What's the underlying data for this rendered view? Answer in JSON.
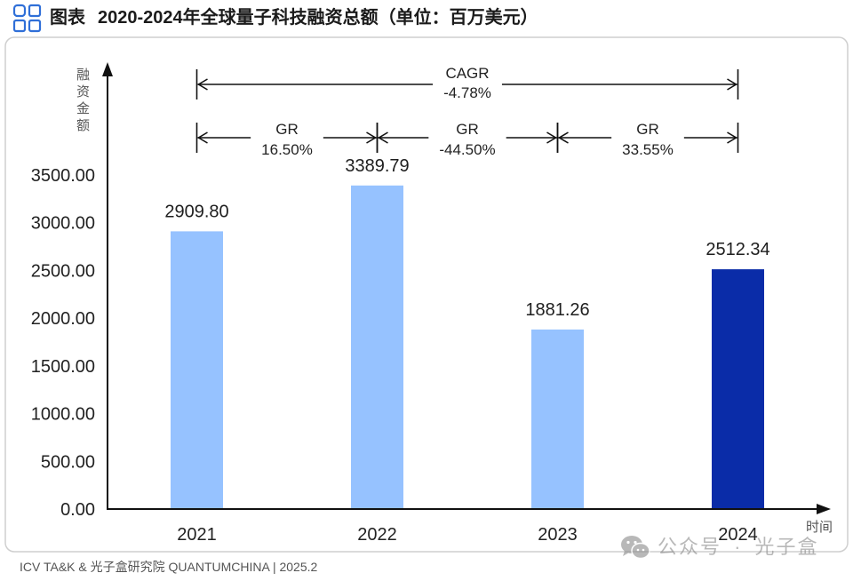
{
  "header": {
    "icon": "grid-icon",
    "icon_color": "#2F6FD8"
  },
  "chart_data": {
    "type": "bar",
    "figure_label": "图表",
    "title": "2020-2024年全球量子科技融资总额（单位：百万美元）",
    "xlabel": "时间",
    "ylabel": "融资金额",
    "categories": [
      "2021",
      "2022",
      "2023",
      "2024"
    ],
    "values": [
      2909.8,
      3389.79,
      1881.26,
      2512.34
    ],
    "value_labels": [
      "2909.80",
      "3389.79",
      "1881.26",
      "2512.34"
    ],
    "bar_colors": [
      "#96C2FF",
      "#96C2FF",
      "#96C2FF",
      "#0A2CA8"
    ],
    "ylim": [
      0,
      3500
    ],
    "yticks": [
      "0.00",
      "500.00",
      "1000.00",
      "1500.00",
      "2000.00",
      "2500.00",
      "3000.00",
      "3500.00"
    ],
    "grid": false,
    "legend": false,
    "annotations": {
      "cagr": {
        "label": "CAGR",
        "value": "-4.78%",
        "span": [
          0,
          3
        ]
      },
      "growth_rates": [
        {
          "label": "GR",
          "value": "16.50%",
          "span": [
            0,
            1
          ]
        },
        {
          "label": "GR",
          "value": "-44.50%",
          "span": [
            1,
            2
          ]
        },
        {
          "label": "GR",
          "value": "33.55%",
          "span": [
            2,
            3
          ]
        }
      ]
    }
  },
  "footer": {
    "source": "ICV TA&K & 光子盒研究院 QUANTUMCHINA | 2025.2"
  },
  "watermark": {
    "icon": "wechat-icon",
    "text": "公众号 · 光子盒"
  }
}
